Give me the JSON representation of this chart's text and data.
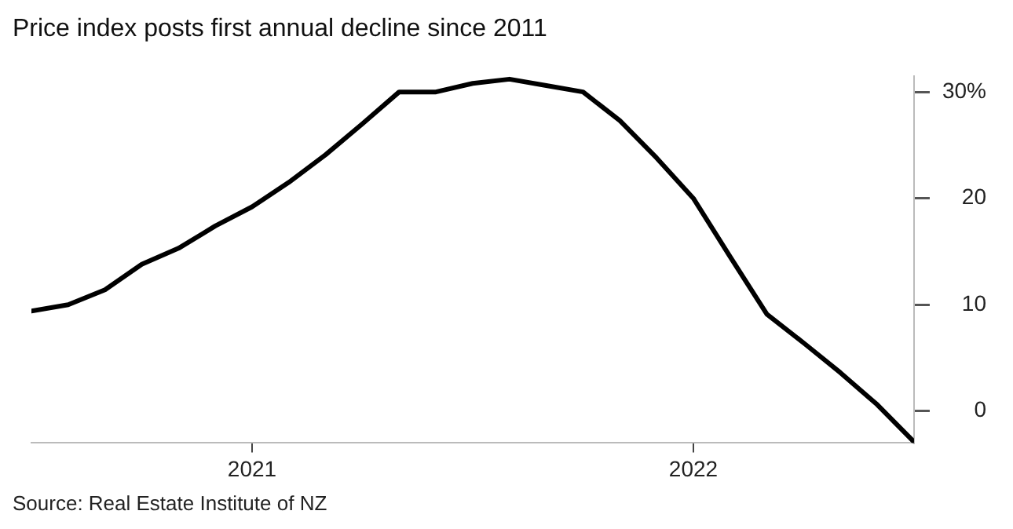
{
  "chart_data": {
    "type": "line",
    "title": "Price index posts first annual decline since 2011",
    "annotations": [
      "Source: Real Estate Institute of NZ"
    ],
    "x": [
      "2020-07",
      "2020-08",
      "2020-09",
      "2020-10",
      "2020-11",
      "2020-12",
      "2021-01",
      "2021-02",
      "2021-03",
      "2021-04",
      "2021-05",
      "2021-06",
      "2021-07",
      "2021-08",
      "2021-09",
      "2021-10",
      "2021-11",
      "2021-12",
      "2022-01",
      "2022-02",
      "2022-03",
      "2022-04",
      "2022-05",
      "2022-06",
      "2022-07"
    ],
    "series": [
      {
        "color": "#000000",
        "values": [
          9.4,
          10.0,
          11.4,
          13.8,
          15.3,
          17.4,
          19.2,
          21.5,
          24.1,
          27.0,
          30.0,
          30.0,
          30.8,
          31.2,
          30.6,
          30.0,
          27.3,
          23.8,
          20.0,
          14.5,
          9.1,
          6.4,
          3.6,
          0.6,
          -2.9
        ]
      }
    ],
    "xlim": [
      "2020-07",
      "2022-07"
    ],
    "xticks": [
      {
        "value": "2021-01",
        "label": "2021"
      },
      {
        "value": "2022-01",
        "label": "2022"
      }
    ],
    "ylim": [
      -3,
      31.5
    ],
    "yticks": [
      {
        "value": 0,
        "label": "0"
      },
      {
        "value": 10,
        "label": "10"
      },
      {
        "value": 20,
        "label": "20"
      },
      {
        "value": 30,
        "label": "30%"
      }
    ],
    "grid": false,
    "legend": false,
    "marker": "none",
    "line_style": "solid"
  }
}
